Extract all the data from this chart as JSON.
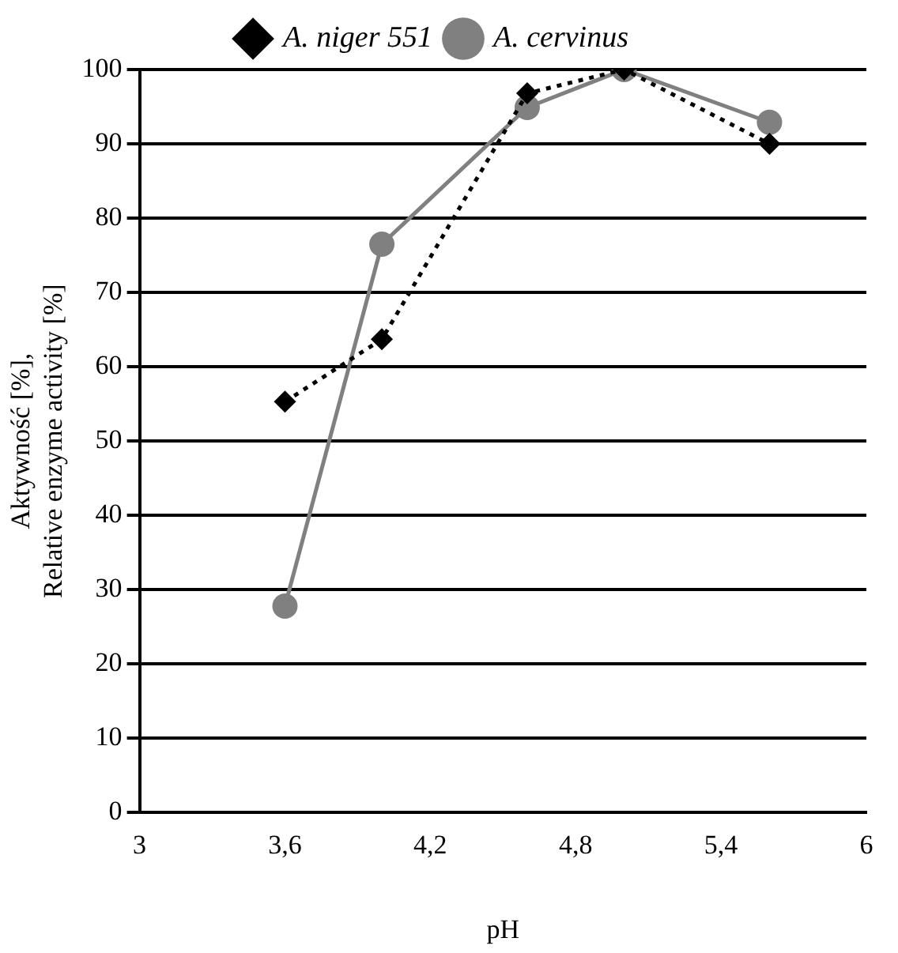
{
  "chart_data": {
    "type": "line",
    "xlabel": "pH",
    "ylabel": "Aktywność [%],\nRelative enzyme activity [%]",
    "xlim": [
      3,
      6
    ],
    "xticks": [
      3,
      {
        "value": 3.6,
        "label": "3,6"
      },
      {
        "value": 4.2,
        "label": "4,2"
      },
      {
        "value": 4.8,
        "label": "4,8"
      },
      {
        "value": 5.4,
        "label": "5,4"
      },
      6
    ],
    "ylim": [
      0,
      100
    ],
    "yticks": [
      0,
      10,
      20,
      30,
      40,
      50,
      60,
      70,
      80,
      90,
      100
    ],
    "grid": "y",
    "legend": "top",
    "series": [
      {
        "name": "A. niger 551",
        "color": "#000000",
        "marker": "diamond",
        "line_style": "dotted",
        "x": [
          3.6,
          4.0,
          4.6,
          5.0,
          5.6
        ],
        "values": [
          55.3,
          63.7,
          96.8,
          100,
          90
        ]
      },
      {
        "name": "A. cervinus",
        "color": "#808080",
        "marker": "circle",
        "line_style": "solid",
        "x": [
          3.6,
          4.0,
          4.6,
          5.0,
          5.6
        ],
        "values": [
          27.8,
          76.5,
          94.9,
          100,
          92.9
        ]
      }
    ]
  }
}
